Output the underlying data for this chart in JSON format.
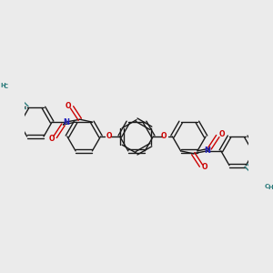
{
  "background_color": "#ebebeb",
  "bond_color": "#1a1a1a",
  "oxygen_color": "#cc0000",
  "nitrogen_color": "#2222bb",
  "alkyne_color": "#2e7d7d",
  "bond_lw": 1.0,
  "figsize": [
    3.0,
    3.0
  ],
  "dpi": 100,
  "xlim": [
    -3.5,
    3.5
  ],
  "ylim": [
    -1.8,
    1.8
  ]
}
